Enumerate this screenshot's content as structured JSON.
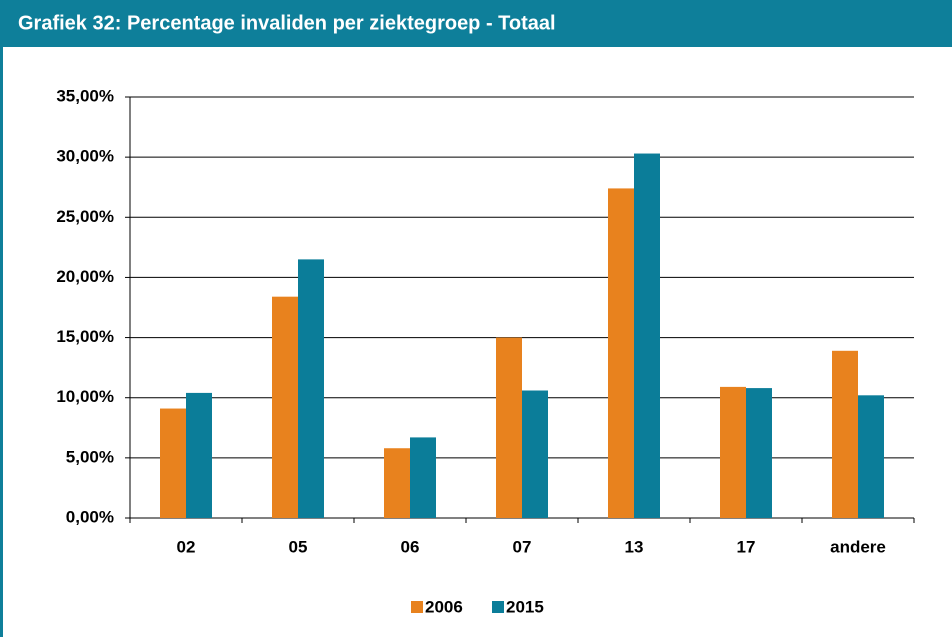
{
  "chart_data": {
    "type": "bar",
    "title": "Grafiek 32: Percentage invaliden per ziektegroep - Totaal",
    "categories": [
      "02",
      "05",
      "06",
      "07",
      "13",
      "17",
      "andere"
    ],
    "series": [
      {
        "name": "2006",
        "color": "#e8821e",
        "values": [
          9.1,
          18.4,
          5.8,
          15.0,
          27.4,
          10.9,
          13.9
        ]
      },
      {
        "name": "2015",
        "color": "#0b7d99",
        "values": [
          10.4,
          21.5,
          6.7,
          10.6,
          30.3,
          10.8,
          10.2
        ]
      }
    ],
    "ylim": [
      0,
      35
    ],
    "yticks": [
      {
        "value": 0,
        "label": "0,00%"
      },
      {
        "value": 5,
        "label": "5,00%"
      },
      {
        "value": 10,
        "label": "10,00%"
      },
      {
        "value": 15,
        "label": "15,00%"
      },
      {
        "value": 20,
        "label": "20,00%"
      },
      {
        "value": 25,
        "label": "25,00%"
      },
      {
        "value": 30,
        "label": "30,00%"
      },
      {
        "value": 35,
        "label": "35,00%"
      }
    ],
    "grid": true,
    "legend": "bottom"
  }
}
